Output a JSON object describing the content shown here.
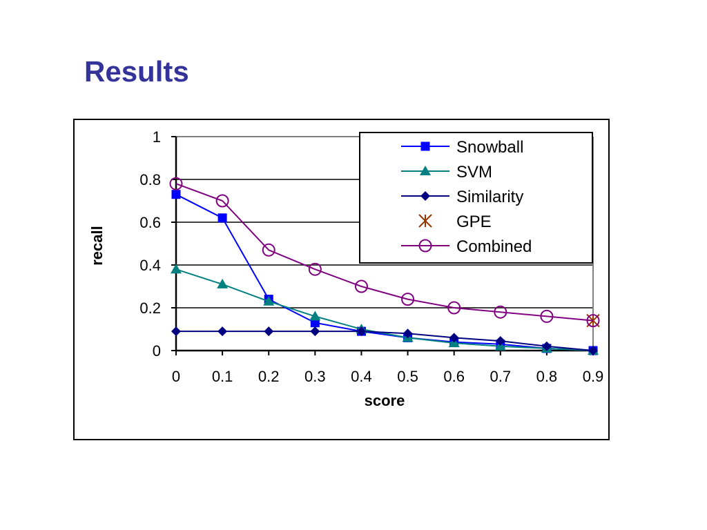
{
  "slide": {
    "title": "Results"
  },
  "chart_data": {
    "type": "line",
    "title": "",
    "xlabel": "score",
    "ylabel": "recall",
    "xlim": [
      0,
      0.9
    ],
    "ylim": [
      0,
      1
    ],
    "grid": "horizontal",
    "legend_position": "top-right",
    "x": [
      0,
      0.1,
      0.2,
      0.3,
      0.4,
      0.5,
      0.6,
      0.7,
      0.8,
      0.9
    ],
    "x_tick_labels": [
      "0",
      "0.1",
      "0.2",
      "0.3",
      "0.4",
      "0.5",
      "0.6",
      "0.7",
      "0.8",
      "0.9"
    ],
    "y_tick_values": [
      0,
      0.2,
      0.4,
      0.6,
      0.8,
      1
    ],
    "y_tick_labels": [
      "0",
      "0.2",
      "0.4",
      "0.6",
      "0.8",
      "1"
    ],
    "series": [
      {
        "name": "Snowball",
        "color": "#0000ff",
        "marker": "square",
        "values": [
          0.73,
          0.62,
          0.24,
          0.13,
          0.09,
          0.06,
          0.04,
          0.03,
          0.01,
          0.0
        ]
      },
      {
        "name": "SVM",
        "color": "#008080",
        "marker": "triangle",
        "values": [
          0.38,
          0.31,
          0.23,
          0.16,
          0.1,
          0.06,
          0.035,
          0.02,
          0.01,
          0.0
        ]
      },
      {
        "name": "Similarity",
        "color": "#000080",
        "marker": "diamond",
        "values": [
          0.09,
          0.09,
          0.09,
          0.09,
          0.09,
          0.08,
          0.06,
          0.045,
          0.02,
          0.0
        ]
      },
      {
        "name": "GPE",
        "color": "#993300",
        "marker": "star",
        "points": [
          [
            0.9,
            0.14
          ]
        ]
      },
      {
        "name": "Combined",
        "color": "#800080",
        "marker": "circle",
        "values": [
          0.78,
          0.7,
          0.47,
          0.38,
          0.3,
          0.24,
          0.2,
          0.18,
          0.16,
          0.14
        ]
      }
    ]
  }
}
